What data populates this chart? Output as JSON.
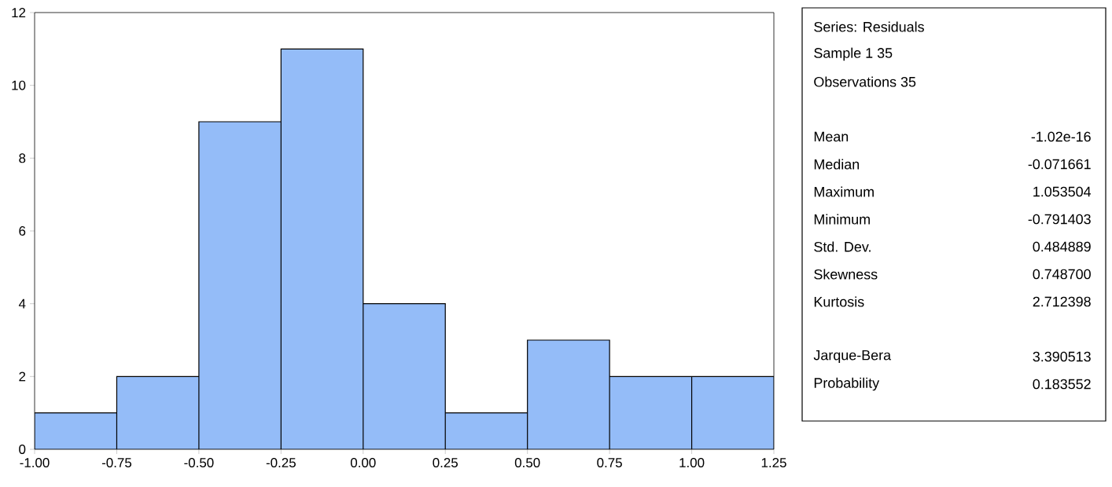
{
  "chart_data": [
    {
      "type": "histogram",
      "bins": [
        -1.0,
        -0.75,
        -0.5,
        -0.25,
        0.0,
        0.25,
        0.5,
        0.75,
        1.0,
        1.25
      ],
      "values": [
        1,
        2,
        9,
        11,
        4,
        1,
        3,
        2,
        2
      ],
      "color": "#94bcf8",
      "xlim": [
        -1.0,
        1.25
      ],
      "ylim": [
        0,
        12
      ],
      "xticks": [
        {
          "value": -1.0,
          "label": "-1.00"
        },
        {
          "value": -0.75,
          "label": "-0.75"
        },
        {
          "value": -0.5,
          "label": "-0.50"
        },
        {
          "value": -0.25,
          "label": "-0.25"
        },
        {
          "value": 0.0,
          "label": "0.00"
        },
        {
          "value": 0.25,
          "label": "0.25"
        },
        {
          "value": 0.5,
          "label": "0.50"
        },
        {
          "value": 0.75,
          "label": "0.75"
        },
        {
          "value": 1.0,
          "label": "1.00"
        },
        {
          "value": 1.25,
          "label": "1.25"
        }
      ],
      "yticks": [
        0,
        2,
        4,
        6,
        8,
        10,
        12
      ],
      "grid": false
    },
    {
      "type": "other",
      "annotations": [
        "Series: Residuals",
        "Sample 1 35",
        "Observations 35",
        "Mean",
        "-1.02e-16",
        "Median",
        "-0.071661",
        "Maximum",
        "1.053504",
        "Minimum",
        "-0.791403",
        "Std. Dev.",
        "0.484889",
        "Skewness",
        "0.748700",
        "Kurtosis",
        "2.712398",
        "Jarque-Bera",
        "3.390513",
        "Probability",
        "0.183552"
      ]
    }
  ]
}
